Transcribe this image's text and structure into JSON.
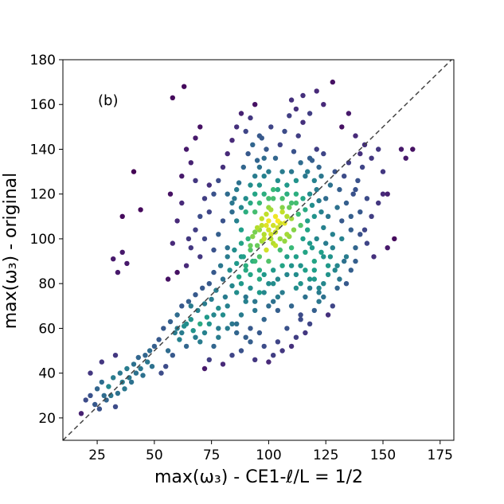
{
  "chart_data": {
    "type": "scatter",
    "title": "",
    "annotation": "(b)",
    "xlabel": "max(ω₃) - CE1-ℓ/L = 1/2",
    "ylabel": "max(ω₃) - original",
    "xlim": [
      10,
      181
    ],
    "ylim": [
      10,
      180
    ],
    "xticks": [
      25,
      50,
      75,
      100,
      125,
      150,
      175
    ],
    "yticks": [
      20,
      40,
      60,
      80,
      100,
      120,
      140,
      160,
      180
    ],
    "xtick_labels": [
      "25",
      "50",
      "75",
      "100",
      "125",
      "150",
      "175"
    ],
    "ytick_labels": [
      "20",
      "40",
      "60",
      "80",
      "100",
      "120",
      "140",
      "160",
      "180"
    ],
    "reference_line": {
      "style": "dashed",
      "color": "#444444",
      "from": [
        10,
        10
      ],
      "to": [
        180,
        180
      ]
    },
    "colormap": "viridis (point density)",
    "grid": false,
    "legend": "none",
    "points": [
      [
        18,
        22
      ],
      [
        20,
        28
      ],
      [
        22,
        30
      ],
      [
        24,
        26
      ],
      [
        25,
        33
      ],
      [
        26,
        24
      ],
      [
        27,
        36
      ],
      [
        28,
        30
      ],
      [
        29,
        28
      ],
      [
        30,
        34
      ],
      [
        31,
        30
      ],
      [
        32,
        38
      ],
      [
        33,
        25
      ],
      [
        34,
        31
      ],
      [
        35,
        40
      ],
      [
        36,
        36
      ],
      [
        37,
        33
      ],
      [
        38,
        42
      ],
      [
        39,
        38
      ],
      [
        40,
        36
      ],
      [
        41,
        44
      ],
      [
        42,
        40
      ],
      [
        43,
        47
      ],
      [
        44,
        42
      ],
      [
        45,
        39
      ],
      [
        46,
        48
      ],
      [
        47,
        45
      ],
      [
        48,
        50
      ],
      [
        49,
        43
      ],
      [
        50,
        52
      ],
      [
        22,
        40
      ],
      [
        27,
        45
      ],
      [
        33,
        48
      ],
      [
        41,
        130
      ],
      [
        36,
        110
      ],
      [
        32,
        91
      ],
      [
        34,
        85
      ],
      [
        36,
        94
      ],
      [
        38,
        89
      ],
      [
        44,
        113
      ],
      [
        52,
        55
      ],
      [
        54,
        60
      ],
      [
        56,
        50
      ],
      [
        57,
        63
      ],
      [
        58,
        48
      ],
      [
        59,
        58
      ],
      [
        60,
        66
      ],
      [
        61,
        55
      ],
      [
        62,
        70
      ],
      [
        63,
        61
      ],
      [
        64,
        52
      ],
      [
        65,
        72
      ],
      [
        66,
        64
      ],
      [
        67,
        59
      ],
      [
        68,
        75
      ],
      [
        69,
        68
      ],
      [
        70,
        62
      ],
      [
        71,
        78
      ],
      [
        72,
        71
      ],
      [
        73,
        65
      ],
      [
        53,
        40
      ],
      [
        55,
        43
      ],
      [
        60,
        85
      ],
      [
        57,
        120
      ],
      [
        62,
        128
      ],
      [
        65,
        100
      ],
      [
        68,
        145
      ],
      [
        70,
        150
      ],
      [
        63,
        168
      ],
      [
        58,
        163
      ],
      [
        74,
        80
      ],
      [
        75,
        73
      ],
      [
        76,
        85
      ],
      [
        77,
        77
      ],
      [
        78,
        69
      ],
      [
        79,
        88
      ],
      [
        80,
        82
      ],
      [
        81,
        74
      ],
      [
        82,
        92
      ],
      [
        83,
        86
      ],
      [
        84,
        79
      ],
      [
        85,
        95
      ],
      [
        86,
        89
      ],
      [
        87,
        83
      ],
      [
        88,
        98
      ],
      [
        89,
        92
      ],
      [
        90,
        86
      ],
      [
        91,
        100
      ],
      [
        92,
        95
      ],
      [
        93,
        90
      ],
      [
        94,
        103
      ],
      [
        95,
        97
      ],
      [
        96,
        92
      ],
      [
        97,
        106
      ],
      [
        98,
        100
      ],
      [
        99,
        95
      ],
      [
        100,
        108
      ],
      [
        101,
        102
      ],
      [
        102,
        98
      ],
      [
        103,
        110
      ],
      [
        104,
        105
      ],
      [
        105,
        100
      ],
      [
        106,
        112
      ],
      [
        107,
        107
      ],
      [
        108,
        102
      ],
      [
        109,
        114
      ],
      [
        110,
        109
      ],
      [
        111,
        104
      ],
      [
        112,
        116
      ],
      [
        113,
        111
      ],
      [
        114,
        106
      ],
      [
        115,
        118
      ],
      [
        116,
        113
      ],
      [
        117,
        108
      ],
      [
        118,
        120
      ],
      [
        119,
        115
      ],
      [
        120,
        110
      ],
      [
        121,
        122
      ],
      [
        122,
        117
      ],
      [
        123,
        112
      ],
      [
        96,
        104
      ],
      [
        98,
        102
      ],
      [
        100,
        104
      ],
      [
        102,
        106
      ],
      [
        104,
        108
      ],
      [
        101,
        100
      ],
      [
        99,
        106
      ],
      [
        103,
        103
      ],
      [
        97,
        99
      ],
      [
        105,
        107
      ],
      [
        93,
        101
      ],
      [
        95,
        105
      ],
      [
        97,
        109
      ],
      [
        99,
        111
      ],
      [
        101,
        113
      ],
      [
        103,
        97
      ],
      [
        105,
        95
      ],
      [
        107,
        99
      ],
      [
        109,
        101
      ],
      [
        92,
        97
      ],
      [
        90,
        112
      ],
      [
        92,
        116
      ],
      [
        94,
        120
      ],
      [
        96,
        124
      ],
      [
        98,
        128
      ],
      [
        100,
        118
      ],
      [
        102,
        122
      ],
      [
        104,
        126
      ],
      [
        106,
        130
      ],
      [
        108,
        120
      ],
      [
        110,
        96
      ],
      [
        112,
        92
      ],
      [
        114,
        88
      ],
      [
        116,
        94
      ],
      [
        118,
        98
      ],
      [
        120,
        90
      ],
      [
        88,
        104
      ],
      [
        86,
        108
      ],
      [
        84,
        112
      ],
      [
        82,
        96
      ],
      [
        85,
        118
      ],
      [
        87,
        125
      ],
      [
        89,
        132
      ],
      [
        91,
        138
      ],
      [
        93,
        142
      ],
      [
        95,
        135
      ],
      [
        97,
        145
      ],
      [
        99,
        140
      ],
      [
        101,
        150
      ],
      [
        103,
        136
      ],
      [
        105,
        142
      ],
      [
        107,
        148
      ],
      [
        109,
        155
      ],
      [
        111,
        139
      ],
      [
        113,
        146
      ],
      [
        115,
        152
      ],
      [
        117,
        130
      ],
      [
        119,
        135
      ],
      [
        121,
        140
      ],
      [
        123,
        128
      ],
      [
        80,
        66
      ],
      [
        82,
        70
      ],
      [
        84,
        62
      ],
      [
        86,
        58
      ],
      [
        88,
        66
      ],
      [
        90,
        72
      ],
      [
        92,
        60
      ],
      [
        94,
        68
      ],
      [
        96,
        76
      ],
      [
        98,
        64
      ],
      [
        100,
        80
      ],
      [
        102,
        72
      ],
      [
        104,
        68
      ],
      [
        106,
        76
      ],
      [
        108,
        84
      ],
      [
        110,
        70
      ],
      [
        112,
        78
      ],
      [
        114,
        66
      ],
      [
        116,
        74
      ],
      [
        118,
        82
      ],
      [
        120,
        86
      ],
      [
        122,
        78
      ],
      [
        124,
        92
      ],
      [
        126,
        84
      ],
      [
        128,
        96
      ],
      [
        130,
        88
      ],
      [
        132,
        100
      ],
      [
        134,
        92
      ],
      [
        136,
        104
      ],
      [
        138,
        96
      ],
      [
        125,
        118
      ],
      [
        127,
        124
      ],
      [
        129,
        130
      ],
      [
        131,
        122
      ],
      [
        133,
        128
      ],
      [
        135,
        134
      ],
      [
        137,
        120
      ],
      [
        139,
        126
      ],
      [
        141,
        132
      ],
      [
        143,
        118
      ],
      [
        124,
        105
      ],
      [
        126,
        110
      ],
      [
        128,
        102
      ],
      [
        130,
        114
      ],
      [
        132,
        108
      ],
      [
        134,
        116
      ],
      [
        136,
        110
      ],
      [
        138,
        122
      ],
      [
        140,
        112
      ],
      [
        142,
        104
      ],
      [
        76,
        95
      ],
      [
        78,
        102
      ],
      [
        80,
        108
      ],
      [
        74,
        112
      ],
      [
        72,
        100
      ],
      [
        70,
        92
      ],
      [
        68,
        104
      ],
      [
        66,
        96
      ],
      [
        64,
        88
      ],
      [
        76,
        120
      ],
      [
        78,
        126
      ],
      [
        80,
        132
      ],
      [
        82,
        138
      ],
      [
        84,
        144
      ],
      [
        86,
        150
      ],
      [
        88,
        156
      ],
      [
        90,
        148
      ],
      [
        92,
        154
      ],
      [
        94,
        160
      ],
      [
        96,
        146
      ],
      [
        110,
        162
      ],
      [
        112,
        158
      ],
      [
        115,
        164
      ],
      [
        118,
        156
      ],
      [
        121,
        166
      ],
      [
        124,
        160
      ],
      [
        128,
        170
      ],
      [
        132,
        150
      ],
      [
        135,
        156
      ],
      [
        138,
        146
      ],
      [
        140,
        138
      ],
      [
        142,
        142
      ],
      [
        145,
        136
      ],
      [
        148,
        140
      ],
      [
        150,
        130
      ],
      [
        152,
        96
      ],
      [
        155,
        100
      ],
      [
        158,
        140
      ],
      [
        160,
        136
      ],
      [
        163,
        140
      ],
      [
        145,
        110
      ],
      [
        148,
        116
      ],
      [
        150,
        120
      ],
      [
        152,
        120
      ],
      [
        146,
        92
      ],
      [
        143,
        98
      ],
      [
        140,
        102
      ],
      [
        138,
        90
      ],
      [
        136,
        86
      ],
      [
        134,
        80
      ],
      [
        130,
        78
      ],
      [
        128,
        70
      ],
      [
        126,
        66
      ],
      [
        124,
        74
      ],
      [
        122,
        72
      ],
      [
        120,
        68
      ],
      [
        118,
        62
      ],
      [
        116,
        58
      ],
      [
        114,
        64
      ],
      [
        112,
        56
      ],
      [
        110,
        52
      ],
      [
        108,
        60
      ],
      [
        106,
        50
      ],
      [
        104,
        54
      ],
      [
        102,
        48
      ],
      [
        100,
        45
      ],
      [
        98,
        52
      ],
      [
        96,
        58
      ],
      [
        94,
        46
      ],
      [
        92,
        54
      ],
      [
        90,
        56
      ],
      [
        88,
        50
      ],
      [
        86,
        62
      ],
      [
        84,
        48
      ],
      [
        82,
        60
      ],
      [
        80,
        44
      ],
      [
        78,
        56
      ],
      [
        76,
        52
      ],
      [
        74,
        46
      ],
      [
        72,
        42
      ],
      [
        106,
        118
      ],
      [
        108,
        124
      ],
      [
        110,
        130
      ],
      [
        112,
        126
      ],
      [
        114,
        134
      ],
      [
        116,
        128
      ],
      [
        118,
        136
      ],
      [
        120,
        126
      ],
      [
        122,
        132
      ],
      [
        124,
        138
      ],
      [
        94,
        112
      ],
      [
        96,
        116
      ],
      [
        98,
        120
      ],
      [
        100,
        114
      ],
      [
        102,
        118
      ],
      [
        104,
        122
      ],
      [
        106,
        114
      ],
      [
        108,
        110
      ],
      [
        110,
        116
      ],
      [
        112,
        120
      ],
      [
        88,
        92
      ],
      [
        90,
        88
      ],
      [
        92,
        84
      ],
      [
        94,
        90
      ],
      [
        96,
        86
      ],
      [
        98,
        84
      ],
      [
        100,
        90
      ],
      [
        102,
        86
      ],
      [
        104,
        82
      ],
      [
        106,
        88
      ],
      [
        86,
        76
      ],
      [
        88,
        80
      ],
      [
        90,
        74
      ],
      [
        92,
        78
      ],
      [
        94,
        72
      ],
      [
        96,
        82
      ],
      [
        98,
        76
      ],
      [
        100,
        70
      ],
      [
        102,
        80
      ],
      [
        104,
        74
      ],
      [
        60,
        60
      ],
      [
        62,
        58
      ],
      [
        64,
        62
      ],
      [
        66,
        70
      ],
      [
        68,
        56
      ],
      [
        70,
        54
      ],
      [
        72,
        58
      ],
      [
        74,
        62
      ],
      [
        76,
        66
      ],
      [
        78,
        60
      ],
      [
        82,
        120
      ],
      [
        84,
        116
      ],
      [
        86,
        122
      ],
      [
        88,
        114
      ],
      [
        90,
        118
      ],
      [
        92,
        124
      ],
      [
        94,
        128
      ],
      [
        96,
        132
      ],
      [
        98,
        136
      ],
      [
        100,
        130
      ],
      [
        115,
        100
      ],
      [
        117,
        104
      ],
      [
        119,
        96
      ],
      [
        121,
        100
      ],
      [
        123,
        94
      ],
      [
        125,
        98
      ],
      [
        127,
        92
      ],
      [
        129,
        86
      ],
      [
        131,
        82
      ],
      [
        133,
        90
      ],
      [
        108,
        92
      ],
      [
        110,
        88
      ],
      [
        112,
        84
      ],
      [
        114,
        80
      ],
      [
        116,
        86
      ],
      [
        118,
        78
      ],
      [
        120,
        82
      ],
      [
        122,
        76
      ],
      [
        124,
        80
      ],
      [
        126,
        88
      ],
      [
        70,
        110
      ],
      [
        72,
        118
      ],
      [
        74,
        124
      ],
      [
        68,
        126
      ],
      [
        66,
        134
      ],
      [
        64,
        140
      ],
      [
        62,
        116
      ],
      [
        60,
        108
      ],
      [
        58,
        98
      ],
      [
        56,
        82
      ]
    ]
  }
}
